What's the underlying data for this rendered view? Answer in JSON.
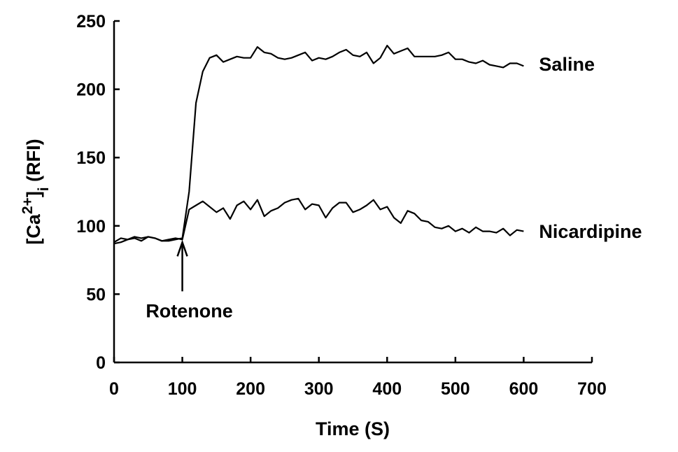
{
  "chart_data": {
    "type": "line",
    "xlabel": "Time (S)",
    "ylabel": {
      "prefix": "[Ca",
      "sup": "2+",
      "mid": "]",
      "sub": "i",
      "suffix": " (RFI)"
    },
    "xlim": [
      0,
      700
    ],
    "ylim": [
      0,
      250
    ],
    "xticks": [
      0,
      100,
      200,
      300,
      400,
      500,
      600,
      700
    ],
    "yticks": [
      0,
      50,
      100,
      150,
      200,
      250
    ],
    "grid": false,
    "legend": "none",
    "x": [
      0,
      10,
      20,
      30,
      40,
      50,
      60,
      70,
      80,
      90,
      100,
      110,
      120,
      130,
      140,
      150,
      160,
      170,
      180,
      190,
      200,
      210,
      220,
      230,
      240,
      250,
      260,
      270,
      280,
      290,
      300,
      310,
      320,
      330,
      340,
      350,
      360,
      370,
      380,
      390,
      400,
      410,
      420,
      430,
      440,
      450,
      460,
      470,
      480,
      490,
      500,
      510,
      520,
      530,
      540,
      550,
      560,
      570,
      580,
      590,
      600
    ],
    "series": [
      {
        "name": "Saline",
        "values": [
          88,
          91,
          90,
          91,
          89,
          92,
          91,
          89,
          89,
          90,
          91,
          125,
          190,
          213,
          223,
          225,
          220,
          222,
          224,
          223,
          223,
          231,
          227,
          226,
          223,
          222,
          223,
          225,
          227,
          221,
          223,
          222,
          224,
          227,
          229,
          225,
          224,
          227,
          219,
          223,
          232,
          226,
          228,
          230,
          224,
          224,
          224,
          224,
          225,
          227,
          222,
          222,
          220,
          219,
          221,
          218,
          217,
          216,
          219,
          219,
          217
        ]
      },
      {
        "name": "Nicardipine",
        "values": [
          87,
          88,
          90,
          92,
          91,
          92,
          91,
          89,
          90,
          91,
          90,
          112,
          115,
          118,
          114,
          110,
          113,
          105,
          115,
          118,
          112,
          119,
          107,
          111,
          113,
          117,
          119,
          120,
          112,
          116,
          115,
          106,
          113,
          117,
          117,
          110,
          112,
          115,
          119,
          112,
          114,
          106,
          102,
          111,
          109,
          104,
          103,
          99,
          98,
          100,
          96,
          98,
          95,
          99,
          96,
          96,
          95,
          98,
          93,
          97,
          96
        ]
      }
    ],
    "annotations": [
      {
        "text": "Rotenone",
        "x": 100,
        "y": 90
      }
    ]
  }
}
